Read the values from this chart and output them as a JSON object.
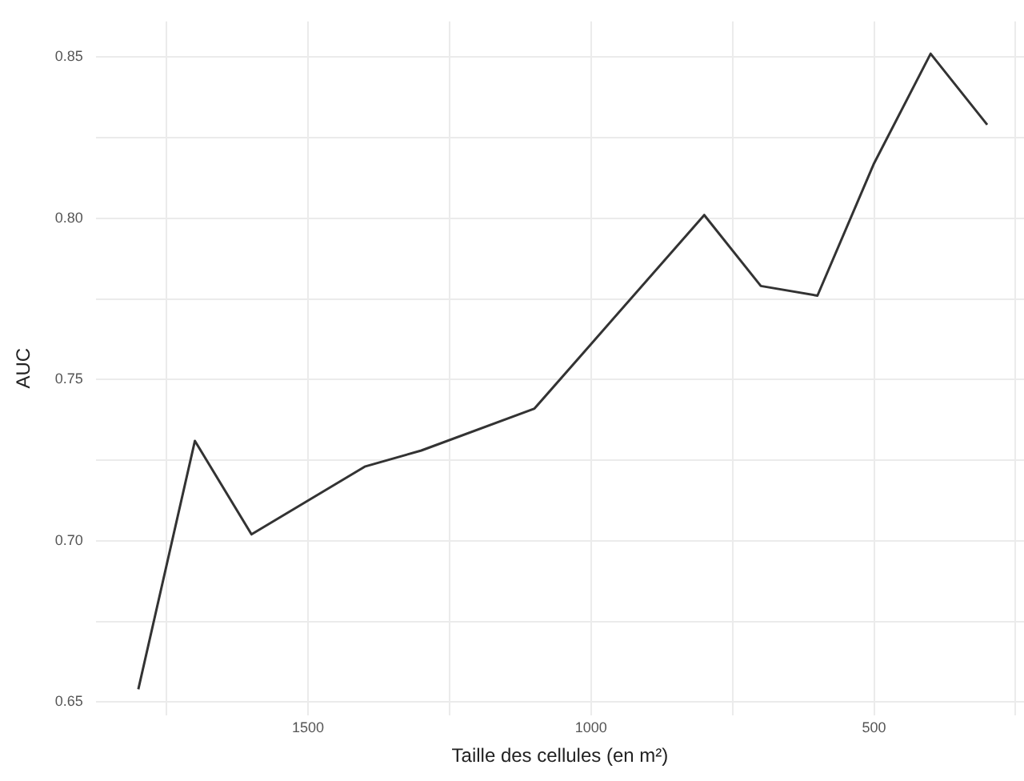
{
  "chart_data": {
    "type": "line",
    "xlabel": "Taille des cellules (en m²)",
    "ylabel": "AUC",
    "x": [
      1800,
      1700,
      1600,
      1400,
      1300,
      1100,
      1000,
      800,
      700,
      600,
      500,
      400,
      300
    ],
    "series": [
      {
        "color": "#333333",
        "values": [
          0.654,
          0.731,
          0.702,
          0.723,
          0.728,
          0.741,
          0.761,
          0.801,
          0.779,
          0.776,
          0.817,
          0.851,
          0.829
        ]
      }
    ],
    "xlim": [
      1875,
      235
    ],
    "ylim": [
      0.646,
      0.861
    ],
    "xticks": [
      {
        "value": 1750,
        "label": null
      },
      1500,
      {
        "value": 1250,
        "label": null
      },
      1000,
      {
        "value": 750,
        "label": null
      },
      500,
      {
        "value": 250,
        "label": null
      }
    ],
    "yticks": [
      0.65,
      {
        "value": 0.675,
        "label": null
      },
      {
        "value": 0.7,
        "label": "0.70"
      },
      {
        "value": 0.725,
        "label": null
      },
      0.75,
      {
        "value": 0.775,
        "label": null
      },
      {
        "value": 0.8,
        "label": "0.80"
      },
      {
        "value": 0.825,
        "label": null
      },
      0.85
    ],
    "grid": true,
    "legend": false,
    "marker": "none",
    "line_style": "solid"
  }
}
